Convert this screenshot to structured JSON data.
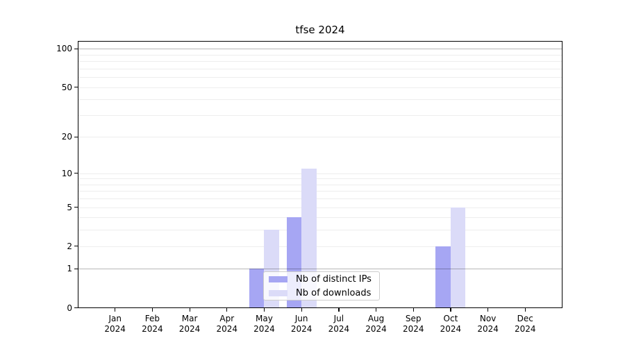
{
  "title": "tfse 2024",
  "colors": {
    "ips": "#a6a6f3",
    "downloads": "#dbdbf8",
    "axis": "#000000",
    "grid_light": "#ededed",
    "grid_emphasis": "#b5b5b5",
    "legend_border": "#cccccc",
    "background": "#ffffff"
  },
  "legend": {
    "items": [
      {
        "label": "Nb of distinct IPs",
        "color_key": "ips"
      },
      {
        "label": "Nb of downloads",
        "color_key": "downloads"
      }
    ]
  },
  "chart_data": {
    "type": "bar",
    "title": "tfse 2024",
    "xlabel": "",
    "ylabel": "",
    "months": [
      "Jan",
      "Feb",
      "Mar",
      "Apr",
      "May",
      "Jun",
      "Jul",
      "Aug",
      "Sep",
      "Oct",
      "Nov",
      "Dec"
    ],
    "year": "2024",
    "categories": [
      "Jan 2024",
      "Feb 2024",
      "Mar 2024",
      "Apr 2024",
      "May 2024",
      "Jun 2024",
      "Jul 2024",
      "Aug 2024",
      "Sep 2024",
      "Oct 2024",
      "Nov 2024",
      "Dec 2024"
    ],
    "series": [
      {
        "name": "Nb of distinct IPs",
        "color_key": "ips",
        "values": [
          0,
          0,
          0,
          0,
          1,
          4,
          0,
          0,
          0,
          2,
          0,
          0
        ]
      },
      {
        "name": "Nb of downloads",
        "color_key": "downloads",
        "values": [
          0,
          0,
          0,
          0,
          3,
          11,
          0,
          0,
          0,
          5,
          0,
          0
        ]
      }
    ],
    "y_scale": "log1p",
    "ylim": [
      0,
      115
    ],
    "y_major_ticks": [
      0,
      1,
      2,
      5,
      10,
      20,
      50,
      100
    ],
    "y_emphasized_gridlines": [
      1,
      100
    ],
    "y_minor_gridlines": [
      3,
      4,
      6,
      7,
      8,
      9,
      30,
      40,
      60,
      70,
      80,
      90
    ],
    "grid": true,
    "legend_position": "lower center"
  }
}
